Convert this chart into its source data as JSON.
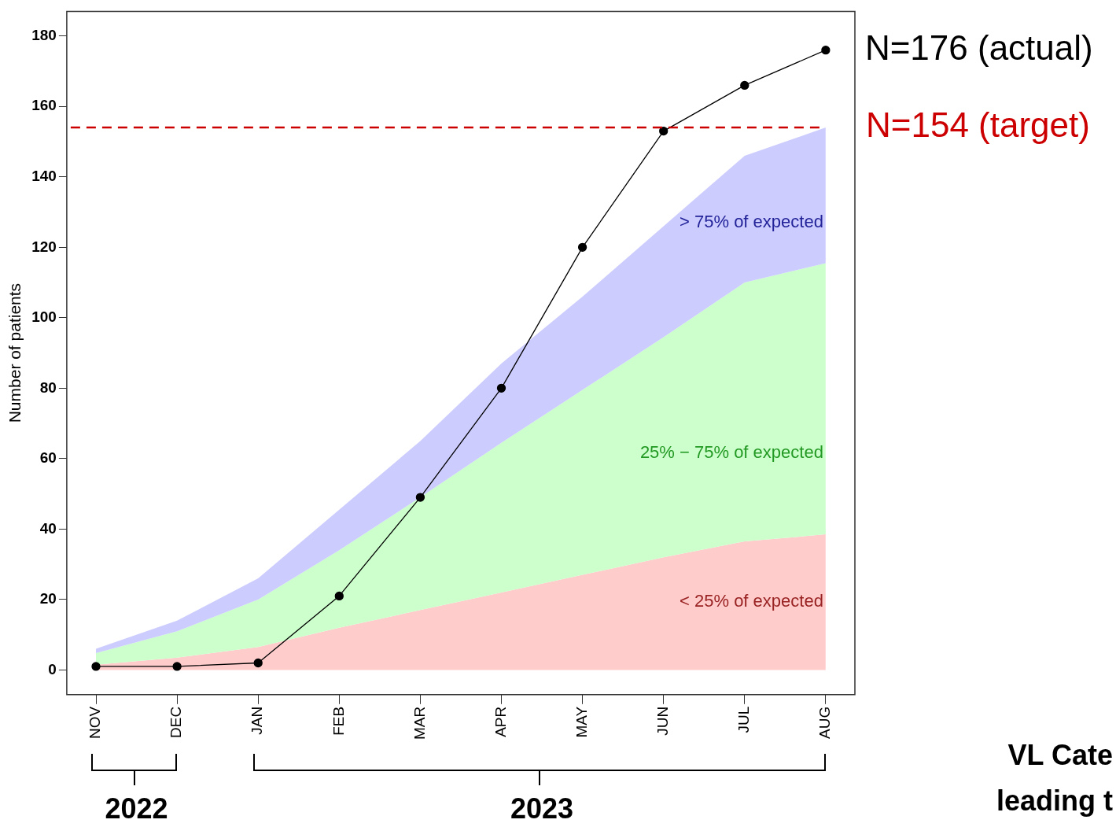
{
  "chart_data": {
    "type": "area",
    "ylabel": "Number of patients",
    "categories": [
      "NOV",
      "DEC",
      "JAN",
      "FEB",
      "MAR",
      "APR",
      "MAY",
      "JUN",
      "JUL",
      "AUG"
    ],
    "series": [
      {
        "name": "< 25% of expected",
        "color": "#ffcccc",
        "values": [
          1.5,
          3.5,
          6.5,
          12,
          17,
          22,
          27,
          32,
          36.5,
          38.5
        ]
      },
      {
        "name": "25% − 75% of expected",
        "color": "#ccffcc",
        "values": [
          4.8,
          11,
          20,
          34,
          49,
          64.5,
          79.5,
          94.5,
          110,
          115.5
        ]
      },
      {
        "name": "> 75% of expected",
        "color": "#ccccff",
        "values": [
          6,
          14,
          26,
          45.5,
          65,
          87,
          106,
          126,
          146,
          154
        ]
      },
      {
        "type": "line",
        "color": "#000000",
        "marker": "circle",
        "values": [
          1,
          1,
          2,
          21,
          49,
          80,
          120,
          153,
          166,
          176
        ]
      }
    ],
    "ylim": [
      -7,
      187
    ],
    "yticks": [
      0,
      20,
      40,
      60,
      80,
      100,
      120,
      140,
      160,
      180
    ],
    "grid": false,
    "legend": false,
    "ref_lines": [
      {
        "axis": "y",
        "value": 154,
        "label": "N=154 (target)",
        "color": "#cc0000",
        "line_style": "dashed"
      }
    ],
    "annotations": [
      {
        "text": "N=176 (actual)",
        "x": "AUG",
        "y": 176
      },
      "2022",
      "2023",
      "VL Cate",
      "leading t"
    ]
  }
}
